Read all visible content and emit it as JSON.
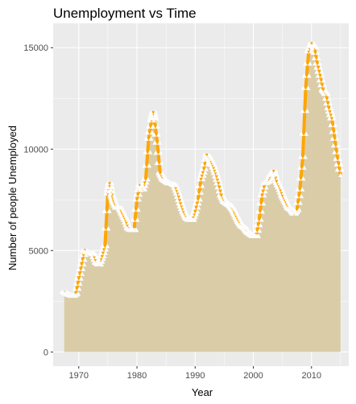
{
  "chart_data": {
    "type": "area",
    "title": "Unemployment vs Time",
    "xlabel": "Year",
    "ylabel": "Number of people  Unemployed",
    "xlim": [
      1965.6,
      2016.4
    ],
    "ylim": [
      -700,
      16200
    ],
    "x_ticks": [
      1970,
      1980,
      1990,
      2000,
      2010
    ],
    "y_ticks": [
      0,
      5000,
      10000,
      15000
    ],
    "grid": true,
    "legend": "none",
    "colors": {
      "panel": "#ebebeb",
      "grid_major": "#ffffff",
      "area_fill": "#d9caa3",
      "line": "#ffa500",
      "marker": "#ffffff"
    },
    "series": [
      {
        "x": [
          1967.5,
          1968.0,
          1968.5,
          1969.0,
          1969.5,
          1970.0,
          1970.5,
          1971.0,
          1971.5,
          1972.0,
          1972.5,
          1973.0,
          1973.5,
          1974.0,
          1974.5,
          1975.0,
          1975.3,
          1975.7,
          1976.0,
          1976.5,
          1977.0,
          1977.5,
          1978.0,
          1978.5,
          1979.0,
          1979.5,
          1980.0,
          1980.5,
          1981.0,
          1981.5,
          1982.0,
          1982.5,
          1982.8,
          1983.0,
          1983.5,
          1984.0,
          1984.5,
          1985.0,
          1985.5,
          1986.0,
          1986.5,
          1987.0,
          1987.5,
          1988.0,
          1988.5,
          1989.0,
          1989.5,
          1990.0,
          1990.5,
          1991.0,
          1991.5,
          1992.0,
          1992.5,
          1993.0,
          1993.5,
          1994.0,
          1994.5,
          1995.0,
          1995.5,
          1996.0,
          1996.5,
          1997.0,
          1997.5,
          1998.0,
          1998.5,
          1999.0,
          1999.5,
          2000.0,
          2000.5,
          2001.0,
          2001.5,
          2002.0,
          2002.5,
          2003.0,
          2003.5,
          2004.0,
          2004.5,
          2005.0,
          2005.5,
          2006.0,
          2006.5,
          2007.0,
          2007.5,
          2008.0,
          2008.5,
          2009.0,
          2009.5,
          2010.0,
          2010.5,
          2011.0,
          2011.5,
          2012.0,
          2012.5,
          2013.0,
          2013.5,
          2014.0,
          2014.5,
          2015.0
        ],
        "y": [
          2950,
          2850,
          2800,
          2750,
          2850,
          3600,
          4300,
          5000,
          4900,
          4900,
          4800,
          4400,
          4300,
          4700,
          5200,
          7800,
          8300,
          7700,
          7400,
          7100,
          7100,
          6800,
          6500,
          6100,
          6000,
          6000,
          7500,
          8200,
          8000,
          8500,
          10500,
          11400,
          11800,
          11500,
          10300,
          8800,
          8500,
          8400,
          8300,
          8300,
          8200,
          7800,
          7300,
          6900,
          6600,
          6500,
          6500,
          6900,
          7500,
          8500,
          9000,
          9700,
          9500,
          9200,
          8800,
          8300,
          7700,
          7400,
          7300,
          7200,
          7000,
          6700,
          6400,
          6200,
          6100,
          5900,
          5800,
          5700,
          5700,
          6500,
          7700,
          8300,
          8400,
          8700,
          8900,
          8400,
          8100,
          7700,
          7400,
          7100,
          7000,
          6800,
          7000,
          8000,
          9600,
          13000,
          14800,
          15200,
          15000,
          14200,
          13600,
          12900,
          12700,
          12000,
          11500,
          10500,
          9500,
          8700
        ]
      }
    ]
  }
}
